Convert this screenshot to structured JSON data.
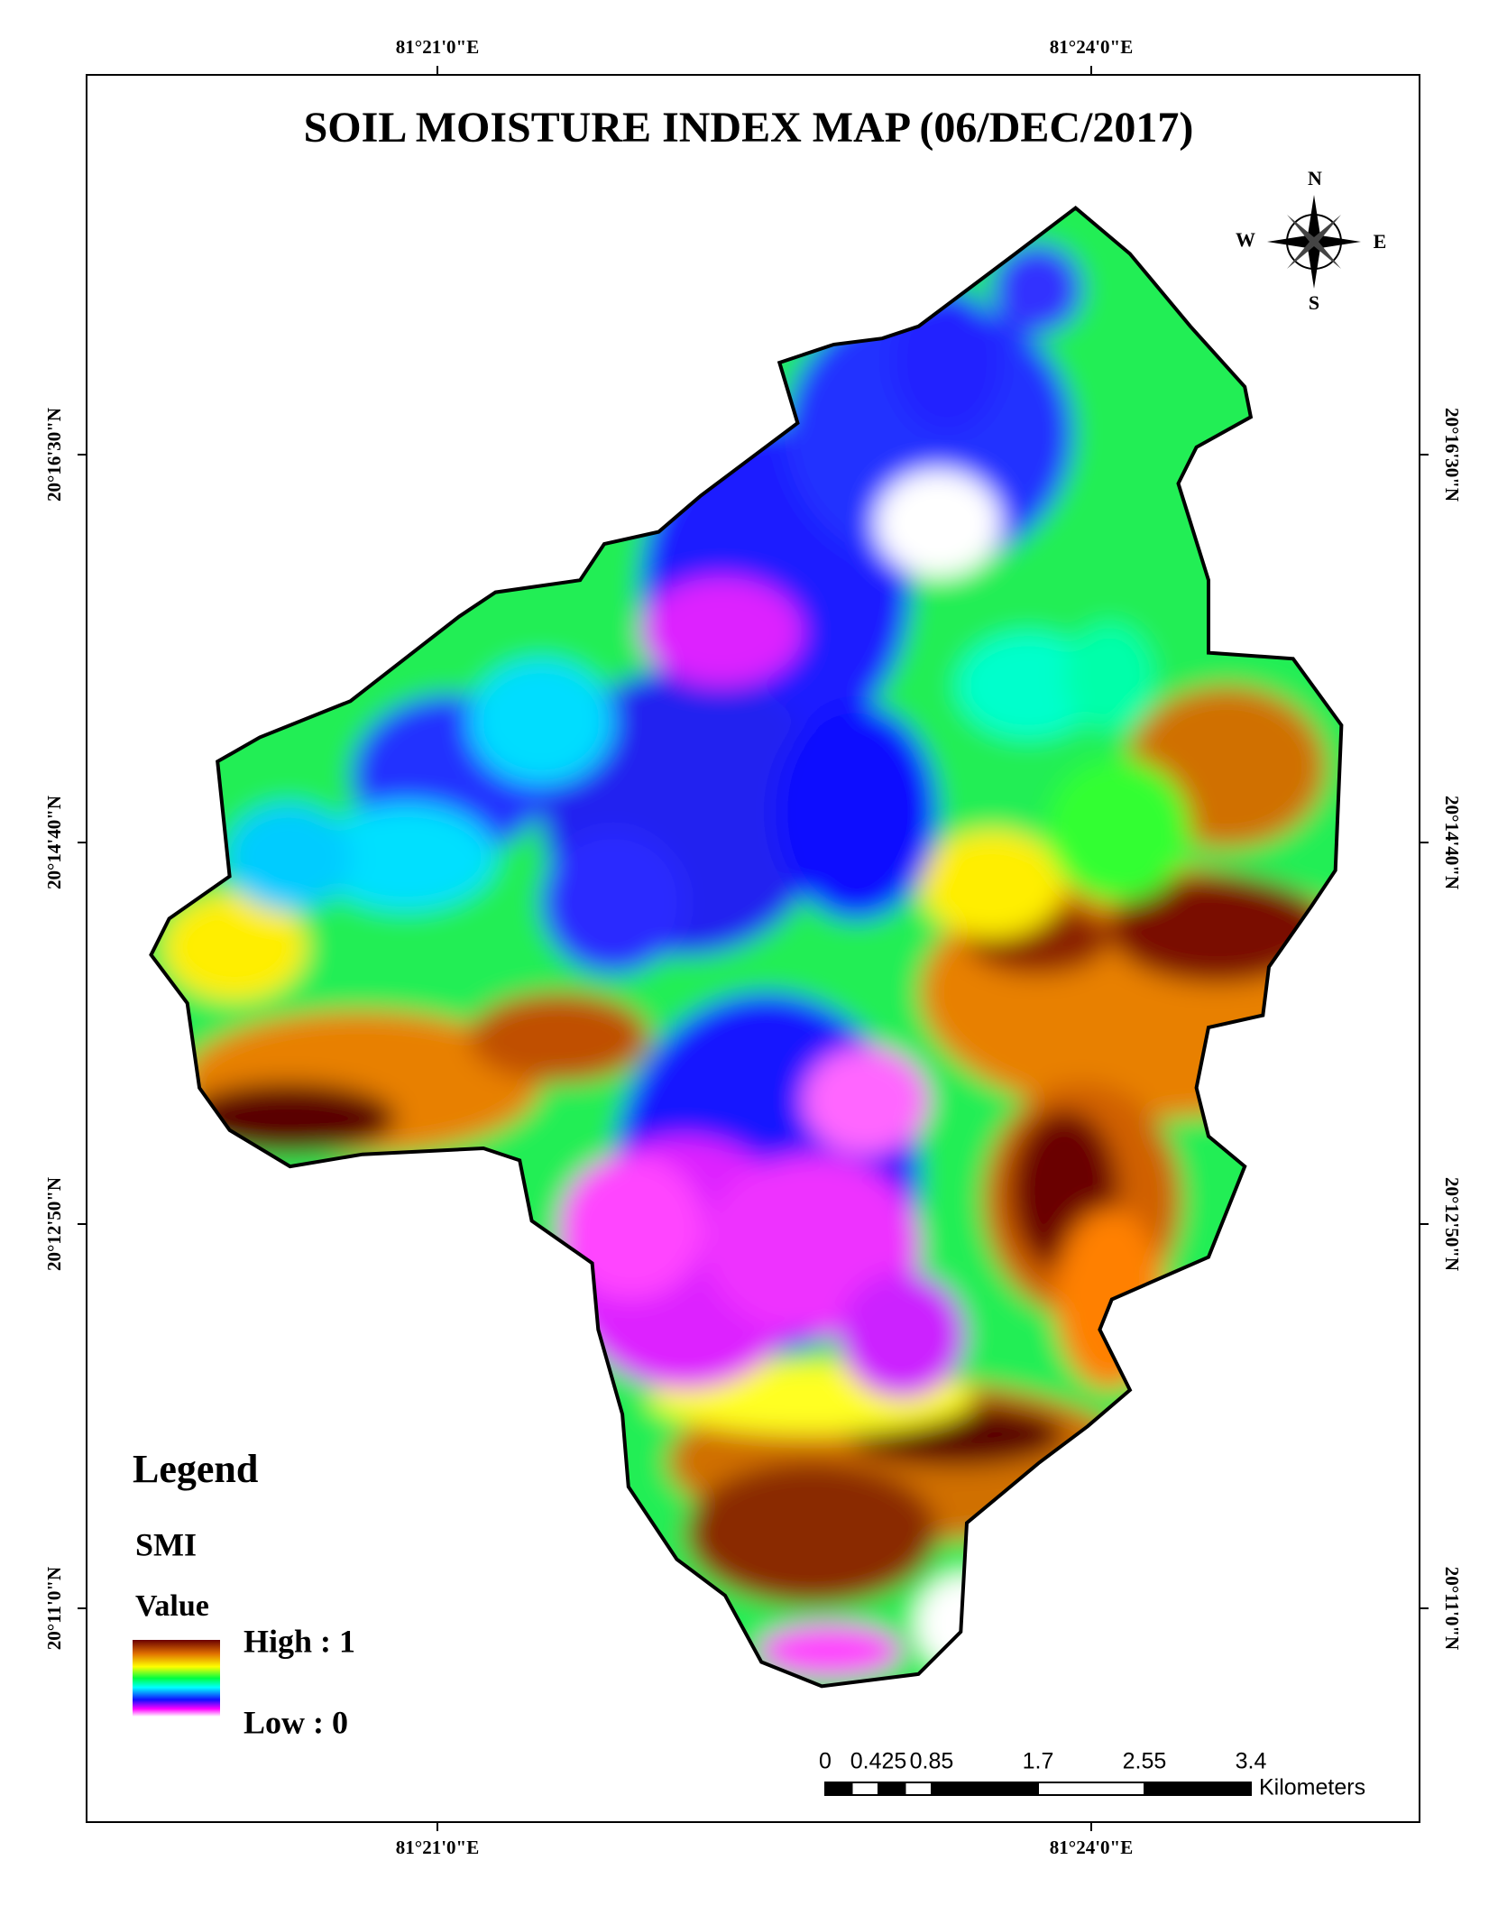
{
  "title": "SOIL MOISTURE INDEX MAP (06/DEC/2017)",
  "graticule": {
    "longitudes": [
      "81°21'0\"E",
      "81°24'0\"E"
    ],
    "latitudes": [
      "20°16'30\"N",
      "20°14'40\"N",
      "20°12'50\"N",
      "20°11'0\"N"
    ]
  },
  "north_arrow": {
    "n": "N",
    "e": "E",
    "s": "S",
    "w": "W"
  },
  "legend": {
    "heading": "Legend",
    "layer": "SMI",
    "field": "Value",
    "high": "High : 1",
    "low": "Low : 0"
  },
  "scale_bar": {
    "ticks": [
      0,
      0.425,
      0.85,
      1.7,
      2.55,
      3.4
    ],
    "unit": "Kilometers"
  }
}
